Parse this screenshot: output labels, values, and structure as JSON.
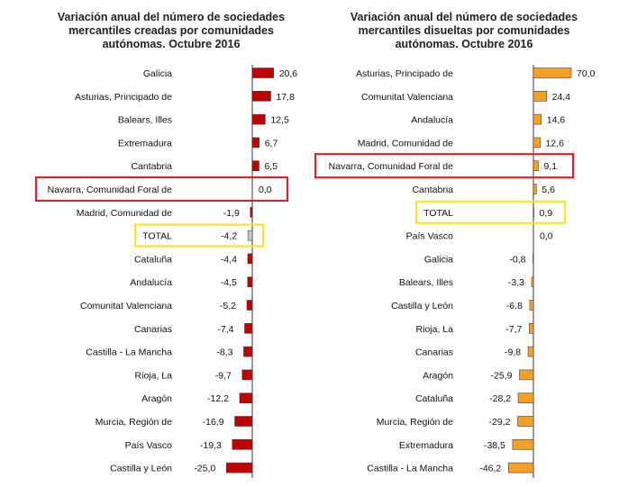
{
  "chart_data": [
    {
      "type": "bar",
      "orientation": "horizontal",
      "title": "Variación anual del número de sociedades mercantiles creadas por comunidades autónomas. Octubre 2016",
      "categories": [
        "Galicia",
        "Asturias, Principado de",
        "Balears, Illes",
        "Extremadura",
        "Cantabria",
        "Navarra, Comunidad Foral de",
        "Madrid, Comunidad de",
        "TOTAL",
        "Cataluña",
        "Andalucía",
        "Comunitat Valenciana",
        "Canarias",
        "Castilla - La Mancha",
        "Rioja, La",
        "Aragón",
        "Murcia, Región de",
        "País Vasco",
        "Castilla y León"
      ],
      "values": [
        20.6,
        17.8,
        12.5,
        6.7,
        6.5,
        0.0,
        -1.9,
        -4.2,
        -4.4,
        -4.5,
        -5.2,
        -7.4,
        -8.3,
        -9.7,
        -12.2,
        -16.9,
        -19.3,
        -25.0
      ],
      "value_labels": [
        "20,6",
        "17,8",
        "12,5",
        "6,7",
        "6,5",
        "0,0",
        "-1,9",
        "-4,2",
        "-4,4",
        "-4,5",
        "-5,2",
        "-7,4",
        "-8,3",
        "-9,7",
        "-12,2",
        "-16,9",
        "-19,3",
        "-25,0"
      ],
      "bar_color": "#c00000",
      "total_color": "#c8c8c8",
      "highlights": [
        {
          "category": "Navarra, Comunidad Foral de",
          "color": "#d9232e"
        },
        {
          "category": "TOTAL",
          "color": "#f5e72a"
        }
      ],
      "grid": false,
      "legend": "none"
    },
    {
      "type": "bar",
      "orientation": "horizontal",
      "title": "Variación anual del número de sociedades mercantiles disueltas por comunidades autónomas. Octubre 2016",
      "categories": [
        "Asturias, Principado de",
        "Comunitat Valenciana",
        "Andalucía",
        "Madrid, Comunidad de",
        "Navarra, Comunidad Foral de",
        "Cantabria",
        "TOTAL",
        "País Vasco",
        "Galicia",
        "Balears, Illes",
        "Castilla y León",
        "Rioja, La",
        "Canarias",
        "Aragón",
        "Cataluña",
        "Murcia, Región de",
        "Extremadura",
        "Castilla - La Mancha"
      ],
      "values": [
        70.0,
        24.4,
        14.6,
        12.6,
        9.1,
        5.6,
        0.9,
        0.0,
        -0.8,
        -3.3,
        -6.8,
        -7.7,
        -9.8,
        -25.9,
        -28.2,
        -29.2,
        -38.5,
        -46.2
      ],
      "value_labels": [
        "70,0",
        "24,4",
        "14,6",
        "12,6",
        "9,1",
        "5,6",
        "0,9",
        "0,0",
        "-0,8",
        "-3,3",
        "-6,8",
        "-7,7",
        "-9,8",
        "-25,9",
        "-28,2",
        "-29,2",
        "-38,5",
        "-46,2"
      ],
      "bar_color": "#f4a024",
      "total_color": "#f4a024",
      "highlights": [
        {
          "category": "Navarra, Comunidad Foral de",
          "color": "#d9232e"
        },
        {
          "category": "TOTAL",
          "color": "#f5e72a"
        }
      ],
      "grid": false,
      "legend": "none"
    }
  ]
}
